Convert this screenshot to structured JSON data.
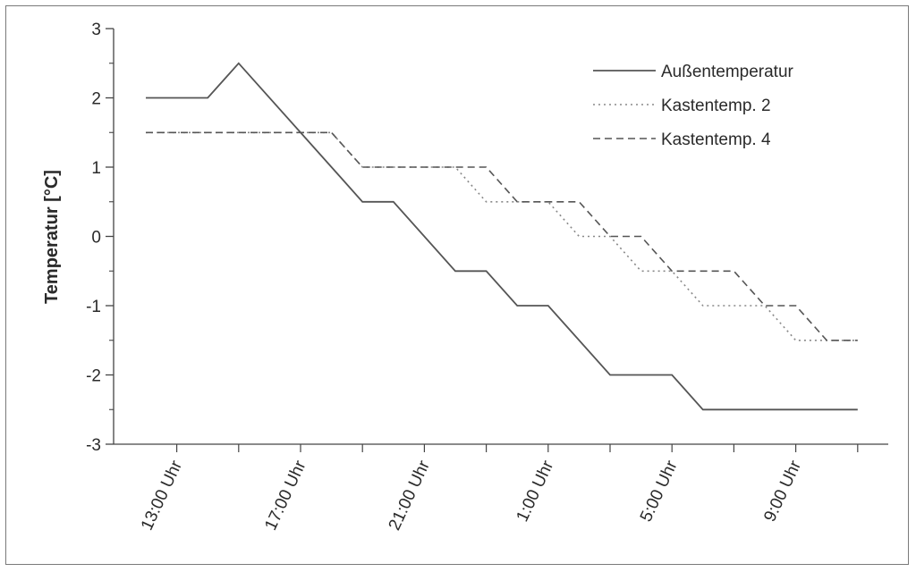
{
  "chart_data": {
    "type": "line",
    "ylabel": "Temperatur [°C]",
    "ylim": [
      -3,
      3
    ],
    "yticks": [
      "3",
      "2",
      "1",
      "0",
      "-1",
      "-2",
      "-3"
    ],
    "xlim": [
      0,
      23.5
    ],
    "xtick_labels": [
      "13:00 Uhr",
      "17:00 Uhr",
      "21:00 Uhr",
      "1:00 Uhr",
      "5:00 Uhr",
      "9:00 Uhr"
    ],
    "legend_position": "top-right",
    "series": [
      {
        "name": "Außentemperatur",
        "style": "solid",
        "color": "#555555",
        "points": [
          [
            0,
            2
          ],
          [
            2,
            2
          ],
          [
            3,
            2.5
          ],
          [
            6,
            1
          ],
          [
            7,
            0.5
          ],
          [
            8,
            0.5
          ],
          [
            10,
            -0.5
          ],
          [
            11,
            -0.5
          ],
          [
            12,
            -1
          ],
          [
            13,
            -1
          ],
          [
            15,
            -2
          ],
          [
            17,
            -2
          ],
          [
            18,
            -2.5
          ],
          [
            23,
            -2.5
          ]
        ]
      },
      {
        "name": "Kastentemp. 2",
        "style": "dotted",
        "color": "#888888",
        "points": [
          [
            0,
            1.5
          ],
          [
            5,
            1.5
          ],
          [
            6,
            1.5
          ],
          [
            7,
            1
          ],
          [
            10,
            1
          ],
          [
            11,
            0.5
          ],
          [
            12,
            0.5
          ],
          [
            13,
            0.5
          ],
          [
            14,
            0
          ],
          [
            15,
            0
          ],
          [
            16,
            -0.5
          ],
          [
            17,
            -0.5
          ],
          [
            18,
            -1
          ],
          [
            20,
            -1
          ],
          [
            21,
            -1.5
          ],
          [
            23,
            -1.5
          ]
        ]
      },
      {
        "name": "Kastentemp. 4",
        "style": "dashed",
        "color": "#555555",
        "points": [
          [
            0,
            1.5
          ],
          [
            6,
            1.5
          ],
          [
            7,
            1
          ],
          [
            11,
            1
          ],
          [
            12,
            0.5
          ],
          [
            14,
            0.5
          ],
          [
            15,
            0
          ],
          [
            16,
            0
          ],
          [
            17,
            -0.5
          ],
          [
            19,
            -0.5
          ],
          [
            20,
            -1
          ],
          [
            21,
            -1
          ],
          [
            22,
            -1.5
          ],
          [
            23,
            -1.5
          ]
        ]
      }
    ]
  }
}
